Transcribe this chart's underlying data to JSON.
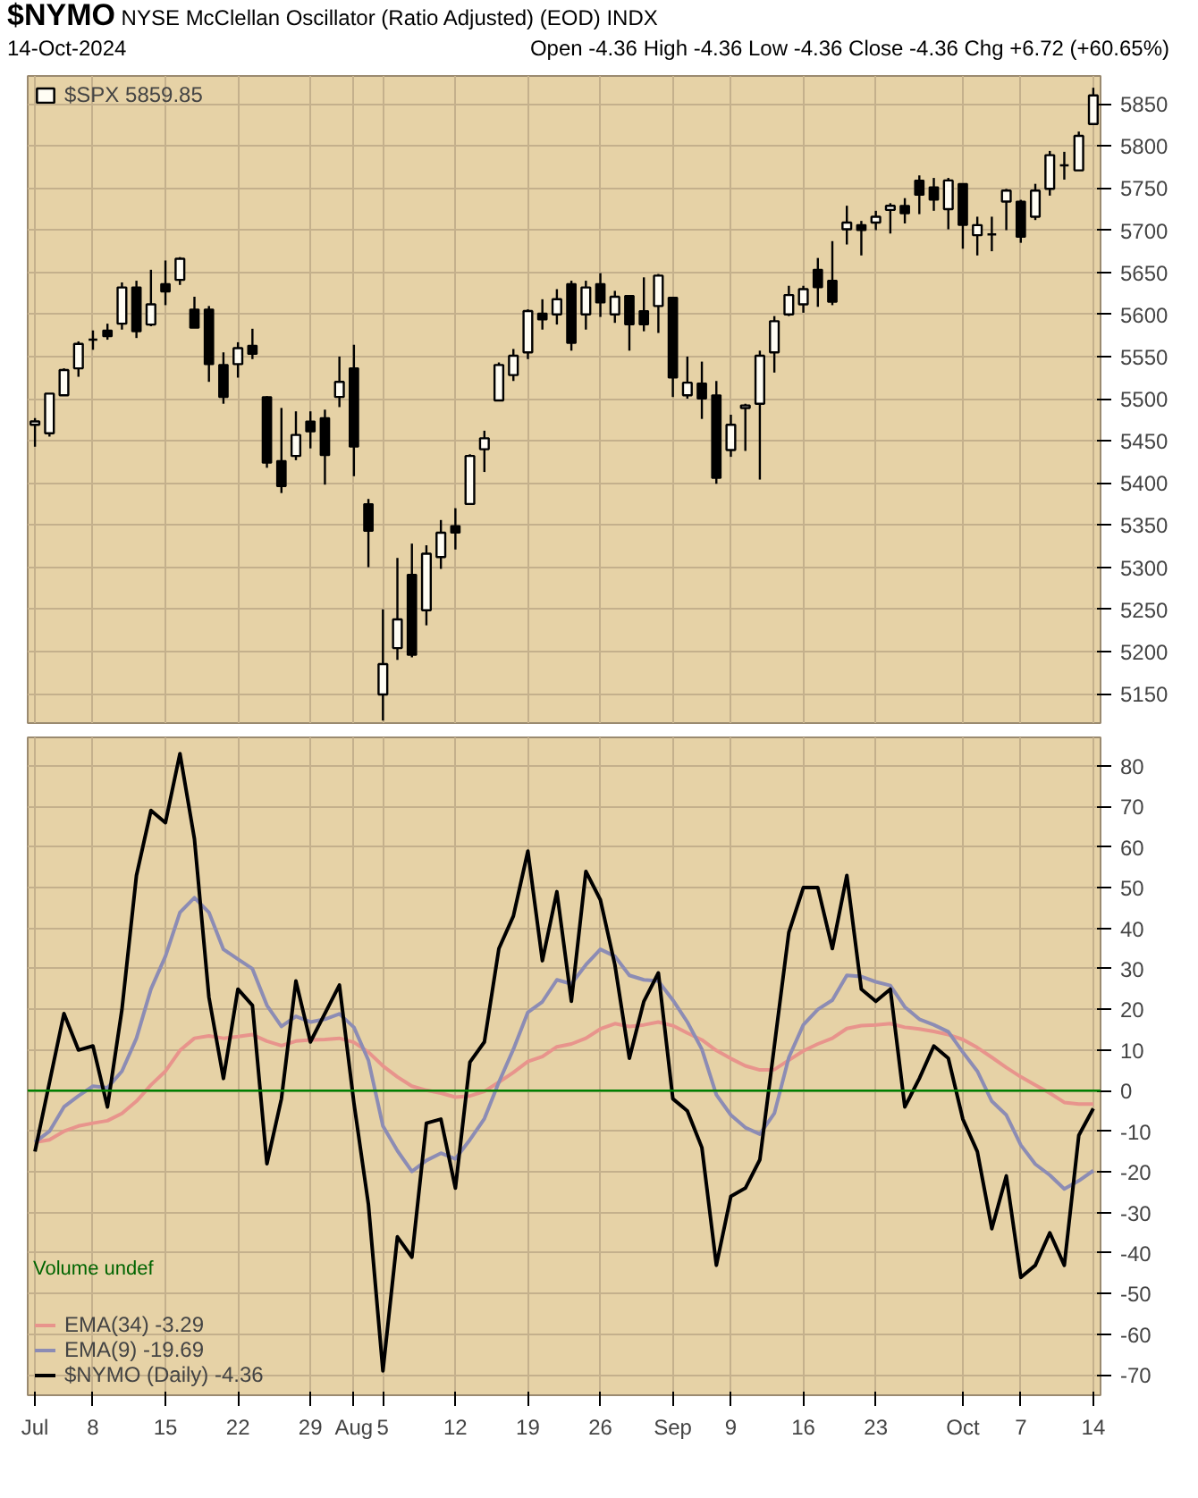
{
  "chart_data": [
    {
      "type": "candlestick",
      "title": "$NYMO",
      "subtitle": "NYSE McClellan Oscillator (Ratio Adjusted) (EOD) INDX",
      "annotations": [
        "14-Oct-2024",
        "Open -4.36 High -4.36 Low -4.36 Close -4.36 Chg +6.72 (+60.65%)"
      ],
      "categories": [
        null,
        null,
        null,
        null,
        null,
        null,
        null,
        null,
        null,
        null,
        null,
        null,
        null,
        null,
        null,
        null,
        null,
        null,
        null,
        null,
        null,
        null,
        null,
        null,
        null,
        null,
        null,
        null,
        null,
        null,
        null,
        null,
        null,
        null,
        null,
        null,
        null,
        null,
        null,
        null,
        null,
        null,
        null,
        null,
        null,
        null,
        null,
        null,
        null,
        null,
        null,
        null,
        null,
        null,
        null,
        null,
        null,
        null,
        null,
        null,
        null,
        null,
        null,
        null,
        null,
        null,
        null,
        null,
        null,
        null,
        null,
        null,
        null,
        null
      ],
      "tick_labels": "y",
      "ylim": [
        5115,
        5883
      ],
      "yticks": [
        5150,
        5200,
        5250,
        5300,
        5350,
        5400,
        5450,
        5500,
        5550,
        5600,
        5650,
        5700,
        5750,
        5800,
        5850
      ],
      "grid": true,
      "legend": "top left",
      "series": [
        {
          "name": "$SPX 5859.85",
          "color": "#000000",
          "ohlc": [
            [
              5469,
              5477,
              5443,
              5473
            ],
            [
              5459,
              5506,
              5455,
              5506
            ],
            [
              5504,
              5536,
              5504,
              5534
            ],
            [
              5536,
              5568,
              5526,
              5565
            ],
            [
              5570,
              5581,
              5558,
              5570
            ],
            [
              5581,
              5589,
              5570,
              5574
            ],
            [
              5589,
              5638,
              5582,
              5632
            ],
            [
              5632,
              5640,
              5572,
              5580
            ],
            [
              5588,
              5653,
              5586,
              5612
            ],
            [
              5636,
              5664,
              5611,
              5627
            ],
            [
              5641,
              5668,
              5635,
              5666
            ],
            [
              5606,
              5621,
              5584,
              5584
            ],
            [
              5606,
              5610,
              5520,
              5541
            ],
            [
              5540,
              5555,
              5494,
              5502
            ],
            [
              5541,
              5567,
              5525,
              5560
            ],
            [
              5563,
              5583,
              5547,
              5553
            ],
            [
              5502,
              5503,
              5418,
              5424
            ],
            [
              5426,
              5489,
              5388,
              5396
            ],
            [
              5432,
              5485,
              5427,
              5457
            ],
            [
              5473,
              5485,
              5441,
              5461
            ],
            [
              5477,
              5487,
              5398,
              5433
            ],
            [
              5502,
              5550,
              5490,
              5520
            ],
            [
              5536,
              5564,
              5408,
              5443
            ],
            [
              5375,
              5381,
              5300,
              5343
            ],
            [
              5149,
              5250,
              5118,
              5185
            ],
            [
              5204,
              5311,
              5190,
              5238
            ],
            [
              5291,
              5328,
              5193,
              5196
            ],
            [
              5249,
              5326,
              5231,
              5316
            ],
            [
              5312,
              5356,
              5298,
              5341
            ],
            [
              5349,
              5370,
              5321,
              5341
            ],
            [
              5375,
              5434,
              5375,
              5432
            ],
            [
              5440,
              5462,
              5413,
              5453
            ],
            [
              5498,
              5543,
              5498,
              5540
            ],
            [
              5528,
              5559,
              5521,
              5551
            ],
            [
              5555,
              5606,
              5547,
              5604
            ],
            [
              5601,
              5618,
              5582,
              5594
            ],
            [
              5600,
              5630,
              5588,
              5618
            ],
            [
              5636,
              5640,
              5557,
              5566
            ],
            [
              5600,
              5640,
              5582,
              5632
            ],
            [
              5636,
              5649,
              5597,
              5614
            ],
            [
              5600,
              5628,
              5590,
              5621
            ],
            [
              5622,
              5622,
              5557,
              5588
            ],
            [
              5604,
              5644,
              5580,
              5588
            ],
            [
              5610,
              5648,
              5578,
              5646
            ],
            [
              5620,
              5620,
              5502,
              5525
            ],
            [
              5504,
              5550,
              5500,
              5519
            ],
            [
              5518,
              5544,
              5476,
              5500
            ],
            [
              5504,
              5521,
              5399,
              5406
            ],
            [
              5439,
              5481,
              5431,
              5469
            ],
            [
              5489,
              5494,
              5438,
              5492
            ],
            [
              5494,
              5557,
              5404,
              5551
            ],
            [
              5555,
              5598,
              5531,
              5592
            ],
            [
              5600,
              5634,
              5598,
              5623
            ],
            [
              5612,
              5634,
              5602,
              5630
            ],
            [
              5653,
              5667,
              5609,
              5632
            ],
            [
              5640,
              5687,
              5611,
              5615
            ],
            [
              5701,
              5729,
              5683,
              5709
            ],
            [
              5706,
              5711,
              5670,
              5700
            ],
            [
              5709,
              5723,
              5700,
              5716
            ],
            [
              5724,
              5732,
              5696,
              5729
            ],
            [
              5729,
              5738,
              5708,
              5720
            ],
            [
              5759,
              5765,
              5719,
              5742
            ],
            [
              5751,
              5762,
              5723,
              5736
            ],
            [
              5725,
              5762,
              5701,
              5759
            ],
            [
              5755,
              5755,
              5678,
              5706
            ],
            [
              5694,
              5716,
              5670,
              5706
            ],
            [
              5695,
              5716,
              5675,
              5695
            ],
            [
              5734,
              5749,
              5700,
              5747
            ],
            [
              5734,
              5736,
              5685,
              5692
            ],
            [
              5716,
              5755,
              5712,
              5747
            ],
            [
              5749,
              5794,
              5741,
              5789
            ],
            [
              5777,
              5793,
              5760,
              5777
            ],
            [
              5771,
              5817,
              5771,
              5812
            ],
            [
              5826,
              5869,
              5826,
              5860
            ]
          ]
        }
      ]
    },
    {
      "type": "line",
      "categories": [
        "Jul",
        null,
        null,
        null,
        "8",
        null,
        null,
        null,
        null,
        "15",
        null,
        null,
        null,
        null,
        "22",
        null,
        null,
        null,
        null,
        "29",
        null,
        null,
        "Aug",
        null,
        "5",
        null,
        null,
        null,
        null,
        "12",
        null,
        null,
        null,
        null,
        "19",
        null,
        null,
        null,
        null,
        "26",
        null,
        null,
        null,
        null,
        "Sep",
        null,
        null,
        null,
        "9",
        null,
        null,
        null,
        null,
        "16",
        null,
        null,
        null,
        null,
        "23",
        null,
        null,
        null,
        null,
        null,
        "Oct",
        null,
        null,
        null,
        "7",
        null,
        null,
        null,
        null,
        "14"
      ],
      "ylim": [
        -75,
        87
      ],
      "yticks": [
        -70,
        -60,
        -50,
        -40,
        -30,
        -20,
        -10,
        0,
        10,
        20,
        30,
        40,
        50,
        60,
        70,
        80
      ],
      "grid": true,
      "legend": "bottom left",
      "annotations": [
        "Volume undef"
      ],
      "ref_lines": [
        {
          "axis": "y",
          "value": 0,
          "color": "#008000"
        }
      ],
      "series": [
        {
          "name": "EMA(34) -3.29",
          "color": "#e8948c",
          "values": [
            -12.7,
            -12.1,
            -10.0,
            -8.7,
            -8.0,
            -7.4,
            -5.6,
            -2.6,
            1.4,
            4.8,
            9.9,
            12.9,
            13.5,
            12.9,
            13.3,
            13.8,
            12.2,
            11.1,
            12.2,
            12.5,
            12.6,
            12.9,
            11.9,
            9.5,
            6.1,
            3.4,
            1.1,
            0.1,
            -0.6,
            -1.6,
            -1.3,
            -0.2,
            2.1,
            4.5,
            7.2,
            8.4,
            10.8,
            11.5,
            12.9,
            15.2,
            16.5,
            15.8,
            16.2,
            16.9,
            16.0,
            14.2,
            12.5,
            9.9,
            7.9,
            6.1,
            5.1,
            5.2,
            7.5,
            9.8,
            11.5,
            12.9,
            15.3,
            16.0,
            16.2,
            16.5,
            15.6,
            15.2,
            14.6,
            13.8,
            12.6,
            10.6,
            8.2,
            5.7,
            3.4,
            1.4,
            -0.6,
            -2.9,
            -3.3,
            -3.3
          ]
        },
        {
          "name": "EMA(9) -19.69",
          "color": "#8c8cb4",
          "values": [
            -12.7,
            -10.0,
            -4.0,
            -1.3,
            1.1,
            0.7,
            4.8,
            12.9,
            25.0,
            33.1,
            43.9,
            47.5,
            43.9,
            34.8,
            32.4,
            30.0,
            21.0,
            15.8,
            18.3,
            16.9,
            17.6,
            18.9,
            15.6,
            7.5,
            -8.7,
            -14.8,
            -19.9,
            -17.2,
            -15.4,
            -16.8,
            -12.1,
            -6.9,
            2.1,
            10.2,
            19.3,
            21.9,
            27.3,
            26.3,
            31.0,
            34.8,
            33.1,
            28.4,
            27.3,
            27.0,
            22.3,
            16.9,
            10.2,
            -1.0,
            -6.0,
            -9.1,
            -10.7,
            -5.6,
            8.2,
            16.2,
            20.0,
            22.3,
            28.4,
            28.1,
            26.8,
            25.9,
            20.6,
            17.6,
            16.2,
            14.5,
            9.5,
            4.8,
            -2.6,
            -6.0,
            -13.4,
            -18.1,
            -20.8,
            -24.2,
            -22.2,
            -19.7
          ]
        },
        {
          "name": "$NYMO (Daily) -4.36",
          "color": "#000000",
          "values": [
            -15,
            2,
            19,
            10,
            11,
            -4,
            20,
            53,
            69,
            66,
            83,
            62,
            23,
            3,
            25,
            21,
            -18,
            -2,
            27,
            12,
            19,
            26,
            -3,
            -28,
            -69,
            -36,
            -41,
            -8,
            -7,
            -24,
            7,
            12,
            35,
            43,
            59,
            32,
            49,
            22,
            54,
            47,
            31,
            8,
            22,
            29,
            -2,
            -5,
            -14,
            -43,
            -26,
            -24,
            -17,
            11,
            39,
            50,
            50,
            35,
            53,
            25,
            22,
            25,
            -4,
            3,
            11,
            8,
            -7,
            -15,
            -34,
            -21,
            -46,
            -43,
            -35,
            -43,
            -11,
            -4.4
          ]
        }
      ]
    }
  ]
}
